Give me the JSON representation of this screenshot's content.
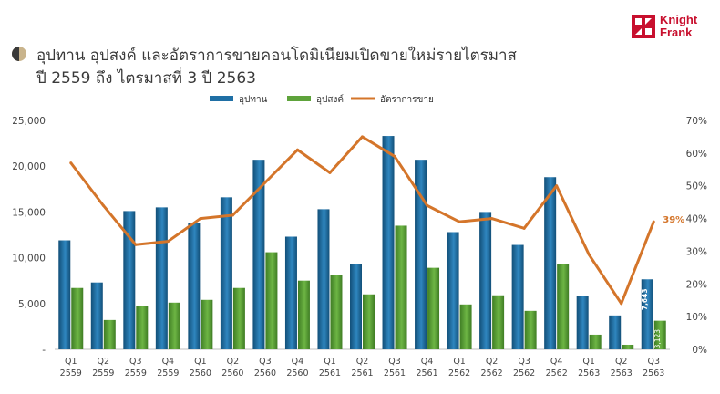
{
  "title_lines": [
    "อุปทาน อุปสงค์ และอัตราการขายคอนโดมิเนียมเปิดขายใหม่รายไตรมาส",
    "ปี 2559 ถึง ไตรมาสที่ 3 ปี 2563"
  ],
  "logo": {
    "line1": "Knight",
    "line2": "Frank",
    "color": "#c8102e"
  },
  "chart_data": {
    "type": "bar",
    "combo": "bar+line",
    "categories": [
      [
        "Q1",
        "2559"
      ],
      [
        "Q2",
        "2559"
      ],
      [
        "Q3",
        "2559"
      ],
      [
        "Q4",
        "2559"
      ],
      [
        "Q1",
        "2560"
      ],
      [
        "Q2",
        "2560"
      ],
      [
        "Q3",
        "2560"
      ],
      [
        "Q4",
        "2560"
      ],
      [
        "Q1",
        "2561"
      ],
      [
        "Q2",
        "2561"
      ],
      [
        "Q3",
        "2561"
      ],
      [
        "Q4",
        "2561"
      ],
      [
        "Q1",
        "2562"
      ],
      [
        "Q2",
        "2562"
      ],
      [
        "Q3",
        "2562"
      ],
      [
        "Q4",
        "2562"
      ],
      [
        "Q1",
        "2563"
      ],
      [
        "Q2",
        "2563"
      ],
      [
        "Q3",
        "2563"
      ]
    ],
    "series": [
      {
        "name": "อุปทาน",
        "type": "bar",
        "axis": "left",
        "color": "#1f6fa5",
        "values": [
          11900,
          7300,
          15100,
          15500,
          13800,
          16600,
          20700,
          12300,
          15300,
          9300,
          23300,
          20700,
          12800,
          15000,
          11400,
          18800,
          5800,
          3700,
          7643
        ]
      },
      {
        "name": "อุปสงค์",
        "type": "bar",
        "axis": "left",
        "color": "#5ea33b",
        "values": [
          6700,
          3200,
          4700,
          5100,
          5400,
          6700,
          10600,
          7500,
          8100,
          6000,
          13500,
          8900,
          4900,
          5900,
          4200,
          9300,
          1600,
          500,
          3123
        ]
      },
      {
        "name": "อัตราการขาย",
        "type": "line",
        "axis": "right",
        "unit": "%",
        "color": "#d4752a",
        "values": [
          57,
          44,
          32,
          33,
          40,
          41,
          51,
          61,
          54,
          65,
          59,
          44,
          39,
          40,
          37,
          50,
          29,
          14,
          39
        ]
      }
    ],
    "data_labels": [
      {
        "series": "อุปทาน",
        "index": 18,
        "text": "7,643"
      },
      {
        "series": "อุปสงค์",
        "index": 18,
        "text": "3,123"
      },
      {
        "series": "อัตราการขาย",
        "index": 18,
        "text": "39%"
      }
    ],
    "y_left": {
      "ticks": [
        "-",
        "5,000",
        "10,000",
        "15,000",
        "20,000",
        "25,000"
      ],
      "range": [
        0,
        25000
      ]
    },
    "y_right": {
      "ticks": [
        "0%",
        "10%",
        "20%",
        "30%",
        "40%",
        "50%",
        "60%",
        "70%"
      ],
      "range": [
        0,
        70
      ]
    },
    "legend_position": "top-center",
    "grid": false
  }
}
